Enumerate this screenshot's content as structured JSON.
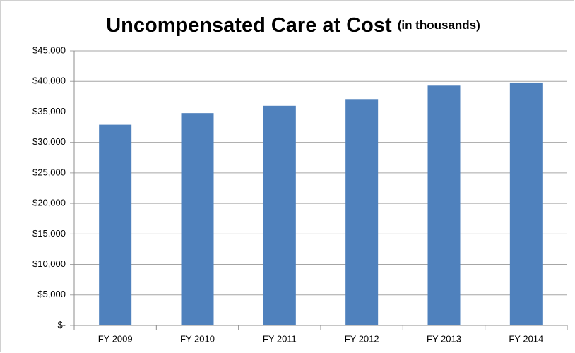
{
  "chart_data": {
    "type": "bar",
    "title": "Uncompensated Care at Cost",
    "subtitle": "(in thousands)",
    "categories": [
      "FY 2009",
      "FY 2010",
      "FY 2011",
      "FY 2012",
      "FY 2013",
      "FY 2014"
    ],
    "values": [
      32900,
      34800,
      36000,
      37100,
      39300,
      39800
    ],
    "color": "#4f81bd",
    "ylim": [
      0,
      45000
    ],
    "yticks": [
      {
        "value": 0,
        "label": "$-"
      },
      {
        "value": 5000,
        "label": "$5,000"
      },
      {
        "value": 10000,
        "label": "$10,000"
      },
      {
        "value": 15000,
        "label": "$15,000"
      },
      {
        "value": 20000,
        "label": "$20,000"
      },
      {
        "value": 25000,
        "label": "$25,000"
      },
      {
        "value": 30000,
        "label": "$30,000"
      },
      {
        "value": 35000,
        "label": "$35,000"
      },
      {
        "value": 40000,
        "label": "$40,000"
      },
      {
        "value": 45000,
        "label": "$45,000"
      }
    ],
    "grid": true
  }
}
